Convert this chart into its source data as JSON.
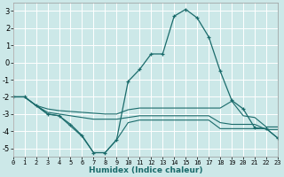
{
  "xlabel": "Humidex (Indice chaleur)",
  "background_color": "#cce8e8",
  "line_color": "#1a6b6b",
  "grid_color": "#ffffff",
  "xlim": [
    0,
    23
  ],
  "ylim": [
    -5.5,
    3.5
  ],
  "yticks": [
    -5,
    -4,
    -3,
    -2,
    -1,
    0,
    1,
    2,
    3
  ],
  "xticks": [
    0,
    1,
    2,
    3,
    4,
    5,
    6,
    7,
    8,
    9,
    10,
    11,
    12,
    13,
    14,
    15,
    16,
    17,
    18,
    19,
    20,
    21,
    22,
    23
  ],
  "line_main_x": [
    0,
    1,
    2,
    3,
    4,
    5,
    6,
    7,
    8,
    9,
    10,
    11,
    12,
    13,
    14,
    15,
    16,
    17,
    18,
    19,
    20,
    21,
    22,
    23
  ],
  "line_main_y": [
    -2.0,
    -2.0,
    -2.5,
    -3.0,
    -3.1,
    -3.6,
    -4.25,
    -5.25,
    -5.25,
    -4.5,
    -1.1,
    -0.4,
    0.5,
    0.5,
    2.7,
    3.1,
    2.6,
    1.5,
    -0.5,
    -2.2,
    -2.7,
    -3.8,
    -3.85,
    -4.4
  ],
  "line_upper_x": [
    0,
    1,
    2,
    3,
    4,
    5,
    6,
    7,
    8,
    9,
    10,
    11,
    12,
    13,
    14,
    15,
    16,
    17,
    18,
    19,
    20,
    21,
    22,
    23
  ],
  "line_upper_y": [
    -2.0,
    -2.0,
    -2.5,
    -2.7,
    -2.8,
    -2.85,
    -2.9,
    -2.95,
    -3.0,
    -3.0,
    -2.75,
    -2.65,
    -2.65,
    -2.65,
    -2.65,
    -2.65,
    -2.65,
    -2.65,
    -2.65,
    -2.25,
    -3.1,
    -3.2,
    -3.75,
    -3.75
  ],
  "line_mid_x": [
    0,
    1,
    2,
    3,
    4,
    5,
    6,
    7,
    8,
    9,
    10,
    11,
    12,
    13,
    14,
    15,
    16,
    17,
    18,
    19,
    20,
    21,
    22,
    23
  ],
  "line_mid_y": [
    -2.0,
    -2.0,
    -2.5,
    -2.9,
    -3.0,
    -3.1,
    -3.2,
    -3.3,
    -3.3,
    -3.3,
    -3.2,
    -3.1,
    -3.1,
    -3.1,
    -3.1,
    -3.1,
    -3.1,
    -3.1,
    -3.5,
    -3.6,
    -3.6,
    -3.6,
    -3.9,
    -3.9
  ],
  "line_lower_x": [
    0,
    1,
    2,
    3,
    4,
    5,
    6,
    7,
    8,
    9,
    10,
    11,
    12,
    13,
    14,
    15,
    16,
    17,
    18,
    19,
    20,
    21,
    22,
    23
  ],
  "line_lower_y": [
    -2.0,
    -2.0,
    -2.5,
    -3.0,
    -3.1,
    -3.7,
    -4.3,
    -5.25,
    -5.25,
    -4.5,
    -3.5,
    -3.35,
    -3.35,
    -3.35,
    -3.35,
    -3.35,
    -3.35,
    -3.35,
    -3.85,
    -3.85,
    -3.85,
    -3.85,
    -3.85,
    -4.4
  ]
}
